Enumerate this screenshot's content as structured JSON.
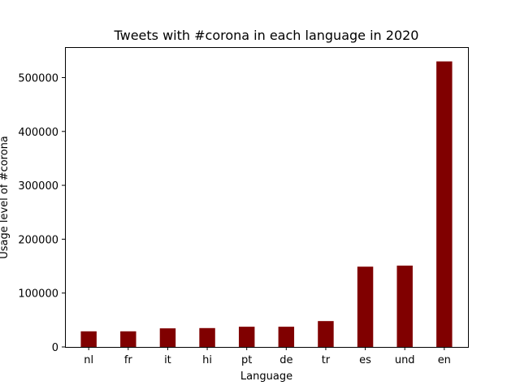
{
  "chart_data": {
    "type": "bar",
    "title": "Tweets with #corona in each language in 2020",
    "xlabel": "Language",
    "ylabel": "Usage level of #corona",
    "categories": [
      "nl",
      "fr",
      "it",
      "hi",
      "pt",
      "de",
      "tr",
      "es",
      "und",
      "en"
    ],
    "values": [
      29000,
      29000,
      34500,
      35000,
      37500,
      37500,
      48000,
      149000,
      151000,
      530000
    ],
    "ylim": [
      0,
      556500
    ],
    "yticks": [
      0,
      100000,
      200000,
      300000,
      400000,
      500000
    ],
    "ytick_labels": [
      "0",
      "100000",
      "200000",
      "300000",
      "400000",
      "500000"
    ],
    "bar_color": "#800000",
    "grid": false,
    "legend": false
  }
}
